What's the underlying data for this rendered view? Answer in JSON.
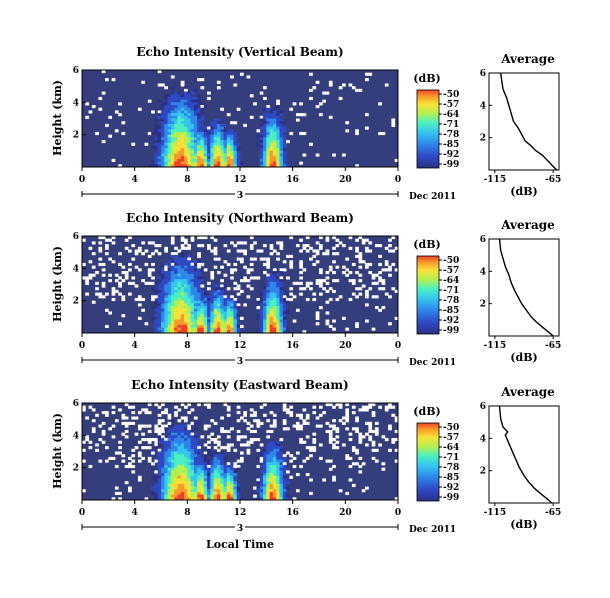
{
  "chart_data": [
    {
      "type": "heatmap",
      "title": "Echo Intensity (Vertical Beam)",
      "ylabel": "Height (km)",
      "x_ticks": [
        "0",
        "4",
        "8",
        "12",
        "16",
        "20",
        "0"
      ],
      "y_ticks": [
        "6",
        "4",
        "2"
      ],
      "xlim": [
        0,
        24
      ],
      "ylim": [
        0,
        6
      ],
      "date_day": "3",
      "date_label": "Dec 2011",
      "colorbar": {
        "unit": "(dB)",
        "ticks": [
          "-50",
          "-57",
          "-64",
          "-71",
          "-78",
          "-85",
          "-92",
          "-99"
        ]
      },
      "average": {
        "title": "Average",
        "xlabel": "(dB)",
        "x_ticks": [
          "-115",
          "-65"
        ],
        "y_ticks": [
          "6",
          "4",
          "2"
        ],
        "profile": [
          [
            -62,
            0.0
          ],
          [
            -66,
            0.3
          ],
          [
            -70,
            0.6
          ],
          [
            -74,
            0.9
          ],
          [
            -80,
            1.2
          ],
          [
            -84,
            1.5
          ],
          [
            -89,
            1.8
          ],
          [
            -92,
            2.2
          ],
          [
            -95,
            2.6
          ],
          [
            -99,
            3.0
          ],
          [
            -101,
            3.5
          ],
          [
            -103,
            4.0
          ],
          [
            -105,
            4.5
          ],
          [
            -108,
            5.0
          ],
          [
            -109,
            5.5
          ],
          [
            -110,
            6.0
          ]
        ]
      }
    },
    {
      "type": "heatmap",
      "title": "Echo Intensity (Northward Beam)",
      "ylabel": "Height (km)",
      "x_ticks": [
        "0",
        "4",
        "8",
        "12",
        "16",
        "20",
        "0"
      ],
      "y_ticks": [
        "6",
        "4",
        "2"
      ],
      "xlim": [
        0,
        24
      ],
      "ylim": [
        0,
        6
      ],
      "date_day": "3",
      "date_label": "Dec 2011",
      "colorbar": {
        "unit": "(dB)",
        "ticks": [
          "-50",
          "-57",
          "-64",
          "-71",
          "-78",
          "-85",
          "-92",
          "-99"
        ]
      },
      "average": {
        "title": "Average",
        "xlabel": "(dB)",
        "x_ticks": [
          "-115",
          "-65"
        ],
        "y_ticks": [
          "6",
          "4",
          "2"
        ],
        "profile": [
          [
            -65,
            0.0
          ],
          [
            -70,
            0.3
          ],
          [
            -75,
            0.6
          ],
          [
            -80,
            0.9
          ],
          [
            -84,
            1.2
          ],
          [
            -88,
            1.6
          ],
          [
            -92,
            2.0
          ],
          [
            -95,
            2.4
          ],
          [
            -98,
            2.8
          ],
          [
            -101,
            3.3
          ],
          [
            -103,
            3.8
          ],
          [
            -106,
            4.3
          ],
          [
            -108,
            4.8
          ],
          [
            -110,
            5.3
          ],
          [
            -111,
            6.0
          ]
        ]
      }
    },
    {
      "type": "heatmap",
      "title": "Echo Intensity (Eastward Beam)",
      "ylabel": "Height (km)",
      "xlabel": "Local Time",
      "x_ticks": [
        "0",
        "4",
        "8",
        "12",
        "16",
        "20",
        "0"
      ],
      "y_ticks": [
        "6",
        "4",
        "2"
      ],
      "xlim": [
        0,
        24
      ],
      "ylim": [
        0,
        6
      ],
      "date_day": "3",
      "date_label": "Dec 2011",
      "colorbar": {
        "unit": "(dB)",
        "ticks": [
          "-50",
          "-57",
          "-64",
          "-71",
          "-78",
          "-85",
          "-92",
          "-99"
        ]
      },
      "average": {
        "title": "Average",
        "xlabel": "(dB)",
        "x_ticks": [
          "-115",
          "-65"
        ],
        "y_ticks": [
          "6",
          "4",
          "2"
        ],
        "profile": [
          [
            -66,
            0.0
          ],
          [
            -71,
            0.3
          ],
          [
            -76,
            0.6
          ],
          [
            -81,
            0.9
          ],
          [
            -86,
            1.3
          ],
          [
            -90,
            1.7
          ],
          [
            -94,
            2.2
          ],
          [
            -97,
            2.7
          ],
          [
            -100,
            3.2
          ],
          [
            -103,
            3.7
          ],
          [
            -106,
            4.2
          ],
          [
            -104,
            4.4
          ],
          [
            -108,
            4.7
          ],
          [
            -110,
            5.2
          ],
          [
            -111,
            6.0
          ]
        ]
      }
    }
  ],
  "colors": {
    "background": "#343e7c",
    "colormap": [
      "#2b2f86",
      "#2f49c4",
      "#2e86e8",
      "#35c4f0",
      "#4cf0c0",
      "#b4f050",
      "#f8e23a",
      "#f89a2a",
      "#f0402a"
    ]
  }
}
